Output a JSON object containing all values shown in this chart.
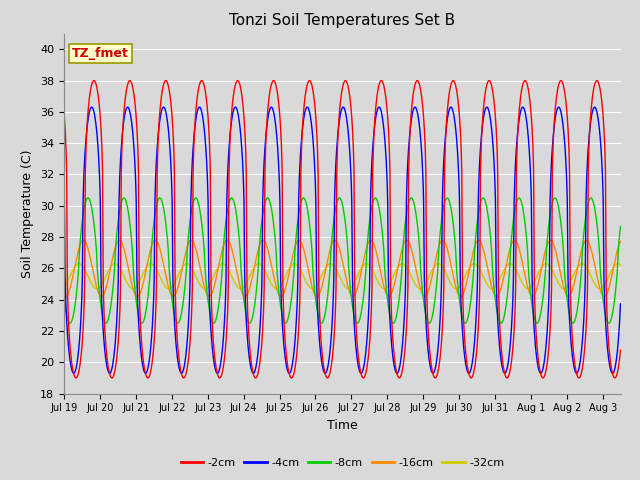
{
  "title": "Tonzi Soil Temperatures Set B",
  "xlabel": "Time",
  "ylabel": "Soil Temperature (C)",
  "ylim": [
    18,
    41
  ],
  "yticks": [
    18,
    20,
    22,
    24,
    26,
    28,
    30,
    32,
    34,
    36,
    38,
    40
  ],
  "legend_label": "TZ_fmet",
  "series_labels": [
    "-2cm",
    "-4cm",
    "-8cm",
    "-16cm",
    "-32cm"
  ],
  "series_colors": [
    "#ff0000",
    "#0000ff",
    "#00cc00",
    "#ff8800",
    "#cccc00"
  ],
  "background_color": "#d9d9d9",
  "plot_bg_color": "#d9d9d9",
  "n_days": 15.5,
  "dt_hours": 0.25,
  "tick_labels": [
    "Jul 19",
    "Jul 20",
    "Jul 21",
    "Jul 22",
    "Jul 23",
    "Jul 24",
    "Jul 25",
    "Jul 26",
    "Jul 27",
    "Jul 28",
    "Jul 29",
    "Jul 30",
    "Jul 31",
    "Aug 1",
    "Aug 2",
    "Aug 3"
  ],
  "amplitudes": [
    9.5,
    8.5,
    4.0,
    1.8,
    0.8
  ],
  "means": [
    28.5,
    27.8,
    26.5,
    26.0,
    25.5
  ],
  "phase_shifts": [
    0.0,
    1.5,
    4.0,
    7.0,
    10.0
  ],
  "sharpness": [
    0.35,
    0.45,
    0.75,
    1.0,
    1.0
  ]
}
